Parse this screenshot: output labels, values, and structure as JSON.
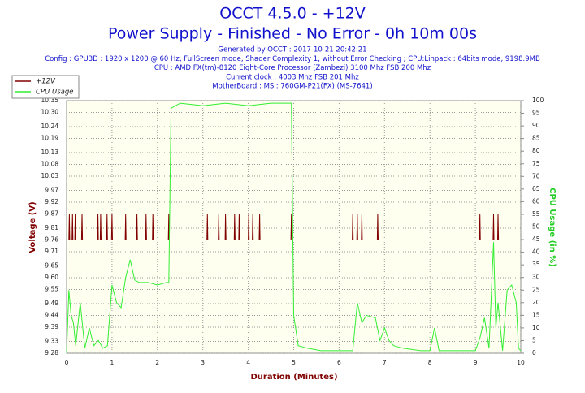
{
  "chart_data": {
    "type": "line",
    "title": "OCCT 4.5.0 - +12V",
    "subtitle": "Power Supply - Finished - No Error - 0h 10m 00s",
    "info": [
      "Generated by OCCT : 2017-10-21 20:42:21",
      "Config : GPU3D : 1920 x 1200 @ 60 Hz, FullScreen mode, Shader Complexity 1, without Error Checking ; CPU:Linpack : 64bits mode, 9198.9MB",
      "CPU : AMD FX(tm)-8120 Eight-Core Processor (Zambezi) 3100 Mhz FSB 200 Mhz",
      "Current clock : 4003 Mhz FSB 201 Mhz",
      "MotherBoard : MSI: 760GM-P21(FX) (MS-7641)"
    ],
    "x_label": "Duration (Minutes)",
    "y_label": "Voltage (V)",
    "y2_label": "CPU Usage (in %)",
    "xlim": [
      0,
      10
    ],
    "xticks": [
      0,
      1,
      2,
      3,
      4,
      5,
      6,
      7,
      8,
      9,
      10
    ],
    "ylim": [
      9.28,
      10.35
    ],
    "yticks": [
      9.28,
      9.33,
      9.39,
      9.44,
      9.49,
      9.55,
      {
        "value": 9.6,
        "label": "9.60"
      },
      9.65,
      9.71,
      9.76,
      9.81,
      9.87,
      9.92,
      9.97,
      10.03,
      10.08,
      10.13,
      10.19,
      10.24,
      {
        "value": 10.3,
        "label": "10.30"
      },
      10.35
    ],
    "y2lim": [
      0,
      100
    ],
    "y2ticks": [
      0,
      5,
      10,
      15,
      20,
      25,
      30,
      35,
      40,
      45,
      50,
      55,
      60,
      65,
      70,
      75,
      80,
      85,
      90,
      95,
      100
    ],
    "grid": true,
    "series": [
      {
        "name": "+12V",
        "color": "#800000",
        "x": [
          0,
          0.05,
          0.06,
          0.07,
          0.12,
          0.13,
          0.14,
          0.18,
          0.19,
          0.2,
          0.33,
          0.34,
          0.35,
          0.68,
          0.69,
          0.7,
          0.74,
          0.75,
          0.76,
          0.88,
          0.89,
          0.9,
          0.99,
          1.0,
          1.01,
          1.29,
          1.3,
          1.31,
          1.54,
          1.55,
          1.56,
          1.74,
          1.75,
          1.76,
          1.89,
          1.9,
          1.91,
          2.24,
          2.25,
          2.26,
          3.09,
          3.1,
          3.11,
          3.34,
          3.35,
          3.36,
          3.49,
          3.5,
          3.51,
          3.69,
          3.7,
          3.71,
          3.79,
          3.8,
          3.81,
          4.0,
          4.01,
          4.02,
          4.09,
          4.1,
          4.11,
          4.24,
          4.25,
          4.26,
          4.94,
          4.95,
          4.96,
          6.29,
          6.3,
          6.31,
          6.39,
          6.4,
          6.41,
          6.49,
          6.5,
          6.51,
          6.84,
          6.85,
          6.86,
          9.09,
          9.1,
          9.11,
          9.39,
          9.4,
          9.41,
          9.49,
          9.5,
          9.51,
          10
        ],
        "values": [
          9.76,
          9.76,
          9.87,
          9.76,
          9.76,
          9.87,
          9.76,
          9.76,
          9.87,
          9.76,
          9.76,
          9.87,
          9.76,
          9.76,
          9.87,
          9.76,
          9.76,
          9.87,
          9.76,
          9.76,
          9.87,
          9.76,
          9.76,
          9.87,
          9.76,
          9.76,
          9.87,
          9.76,
          9.76,
          9.87,
          9.76,
          9.76,
          9.87,
          9.76,
          9.76,
          9.87,
          9.76,
          9.76,
          9.87,
          9.76,
          9.76,
          9.87,
          9.76,
          9.76,
          9.87,
          9.76,
          9.76,
          9.87,
          9.76,
          9.76,
          9.87,
          9.76,
          9.76,
          9.87,
          9.76,
          9.76,
          9.87,
          9.76,
          9.76,
          9.87,
          9.76,
          9.76,
          9.87,
          9.76,
          9.76,
          9.87,
          9.76,
          9.76,
          9.87,
          9.76,
          9.76,
          9.87,
          9.76,
          9.76,
          9.87,
          9.76,
          9.76,
          9.87,
          9.76,
          9.76,
          9.87,
          9.76,
          9.76,
          9.87,
          9.76,
          9.76,
          9.87,
          9.76,
          9.76
        ]
      },
      {
        "name": "CPU Usage",
        "color": "#33ee33",
        "axis": "y2",
        "x": [
          0,
          0.05,
          0.1,
          0.15,
          0.2,
          0.3,
          0.4,
          0.5,
          0.6,
          0.7,
          0.8,
          0.9,
          1.0,
          1.1,
          1.2,
          1.3,
          1.4,
          1.5,
          1.6,
          1.8,
          2.0,
          2.2,
          2.25,
          2.3,
          2.5,
          3.0,
          3.5,
          4.0,
          4.5,
          4.95,
          5.0,
          5.1,
          5.3,
          5.6,
          6.0,
          6.3,
          6.4,
          6.5,
          6.6,
          6.8,
          6.9,
          7.0,
          7.1,
          7.2,
          7.4,
          7.8,
          8.0,
          8.1,
          8.2,
          8.5,
          9.0,
          9.1,
          9.2,
          9.3,
          9.4,
          9.45,
          9.5,
          9.6,
          9.7,
          9.8,
          9.9,
          9.95,
          10
        ],
        "values": [
          0,
          25,
          15,
          12,
          3,
          20,
          2,
          10,
          3,
          5,
          2,
          3,
          27,
          20,
          18,
          30,
          37,
          29,
          28,
          28,
          27,
          28,
          28,
          97,
          99,
          98,
          99,
          98,
          99,
          99,
          15,
          3,
          2,
          1,
          1,
          1,
          20,
          12,
          15,
          14,
          5,
          10,
          5,
          3,
          2,
          1,
          1,
          10,
          1,
          1,
          1,
          6,
          14,
          2,
          44,
          10,
          20,
          1,
          25,
          27,
          20,
          2,
          1
        ]
      }
    ]
  }
}
